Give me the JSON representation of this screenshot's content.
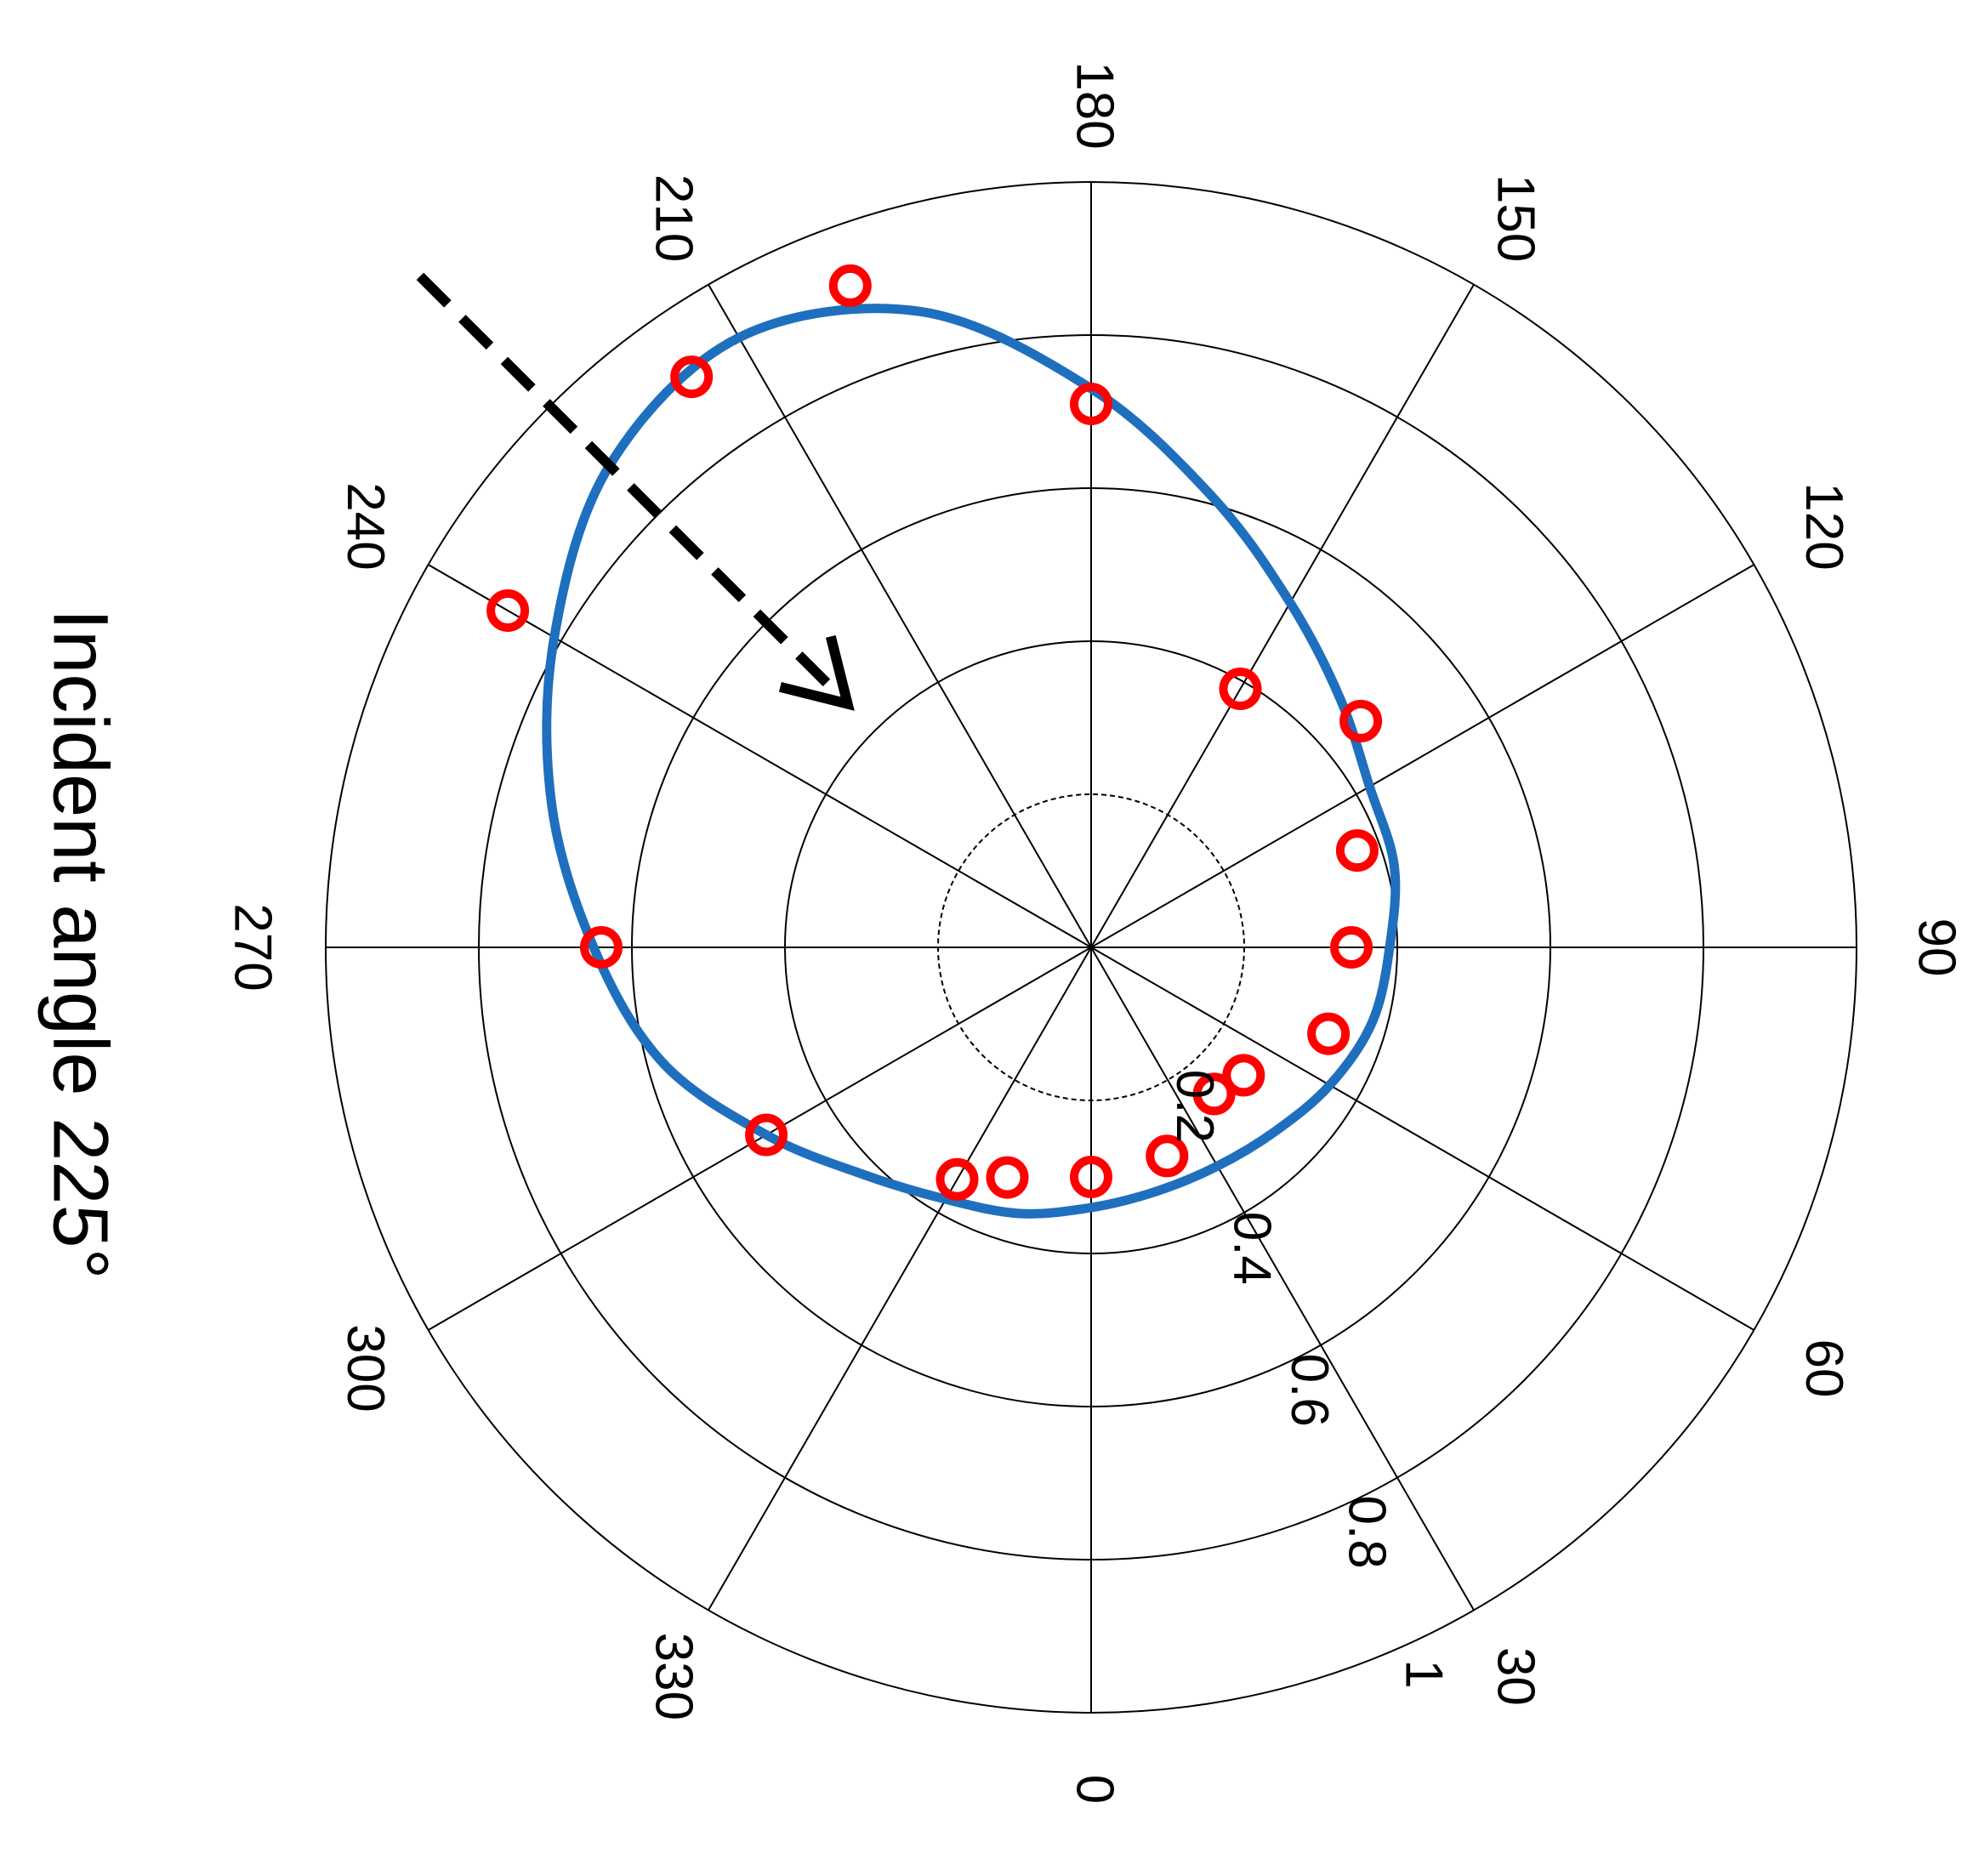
{
  "chart_data": {
    "type": "polar",
    "title": "Incident angle 225°",
    "angular_unit": "degrees",
    "angle_ticks": [
      0,
      30,
      60,
      90,
      120,
      150,
      180,
      210,
      240,
      270,
      300,
      330
    ],
    "radius_ticks": [
      0.2,
      0.4,
      0.6,
      0.8,
      1
    ],
    "rlim": [
      0,
      1
    ],
    "grid": true,
    "incident_arrow": {
      "from": {
        "angle": 225,
        "r": 1.24
      },
      "to": {
        "angle": 225,
        "r": 0.45
      },
      "style": "dashed"
    },
    "series": [
      {
        "kind": "line",
        "color": "#1f6fbf",
        "points": [
          {
            "angle": 0,
            "r": 0.34
          },
          {
            "angle": 15,
            "r": 0.33
          },
          {
            "angle": 30,
            "r": 0.33
          },
          {
            "angle": 45,
            "r": 0.34
          },
          {
            "angle": 60,
            "r": 0.36
          },
          {
            "angle": 75,
            "r": 0.38
          },
          {
            "angle": 90,
            "r": 0.39
          },
          {
            "angle": 105,
            "r": 0.41
          },
          {
            "angle": 120,
            "r": 0.42
          },
          {
            "angle": 135,
            "r": 0.46
          },
          {
            "angle": 150,
            "r": 0.52
          },
          {
            "angle": 165,
            "r": 0.61
          },
          {
            "angle": 180,
            "r": 0.73
          },
          {
            "angle": 195,
            "r": 0.86
          },
          {
            "angle": 210,
            "r": 0.92
          },
          {
            "angle": 225,
            "r": 0.89
          },
          {
            "angle": 240,
            "r": 0.81
          },
          {
            "angle": 255,
            "r": 0.73
          },
          {
            "angle": 270,
            "r": 0.65
          },
          {
            "angle": 285,
            "r": 0.58
          },
          {
            "angle": 300,
            "r": 0.49
          },
          {
            "angle": 315,
            "r": 0.42
          },
          {
            "angle": 330,
            "r": 0.38
          },
          {
            "angle": 345,
            "r": 0.36
          },
          {
            "angle": 360,
            "r": 0.34
          }
        ]
      },
      {
        "kind": "markers",
        "marker": "circle",
        "color": "#ff0000",
        "points": [
          {
            "angle": 0,
            "r": 0.3
          },
          {
            "angle": 20,
            "r": 0.29
          },
          {
            "angle": 40,
            "r": 0.25
          },
          {
            "angle": 50,
            "r": 0.26
          },
          {
            "angle": 70,
            "r": 0.33
          },
          {
            "angle": 90,
            "r": 0.34
          },
          {
            "angle": 110,
            "r": 0.37
          },
          {
            "angle": 130,
            "r": 0.46
          },
          {
            "angle": 150,
            "r": 0.39
          },
          {
            "angle": 180,
            "r": 0.71
          },
          {
            "angle": 200,
            "r": 0.92
          },
          {
            "angle": 215,
            "r": 0.91
          },
          {
            "angle": 240,
            "r": 0.88
          },
          {
            "angle": 270,
            "r": 0.64
          },
          {
            "angle": 300,
            "r": 0.49
          },
          {
            "angle": 330,
            "r": 0.35
          },
          {
            "angle": 340,
            "r": 0.32
          }
        ]
      }
    ]
  }
}
